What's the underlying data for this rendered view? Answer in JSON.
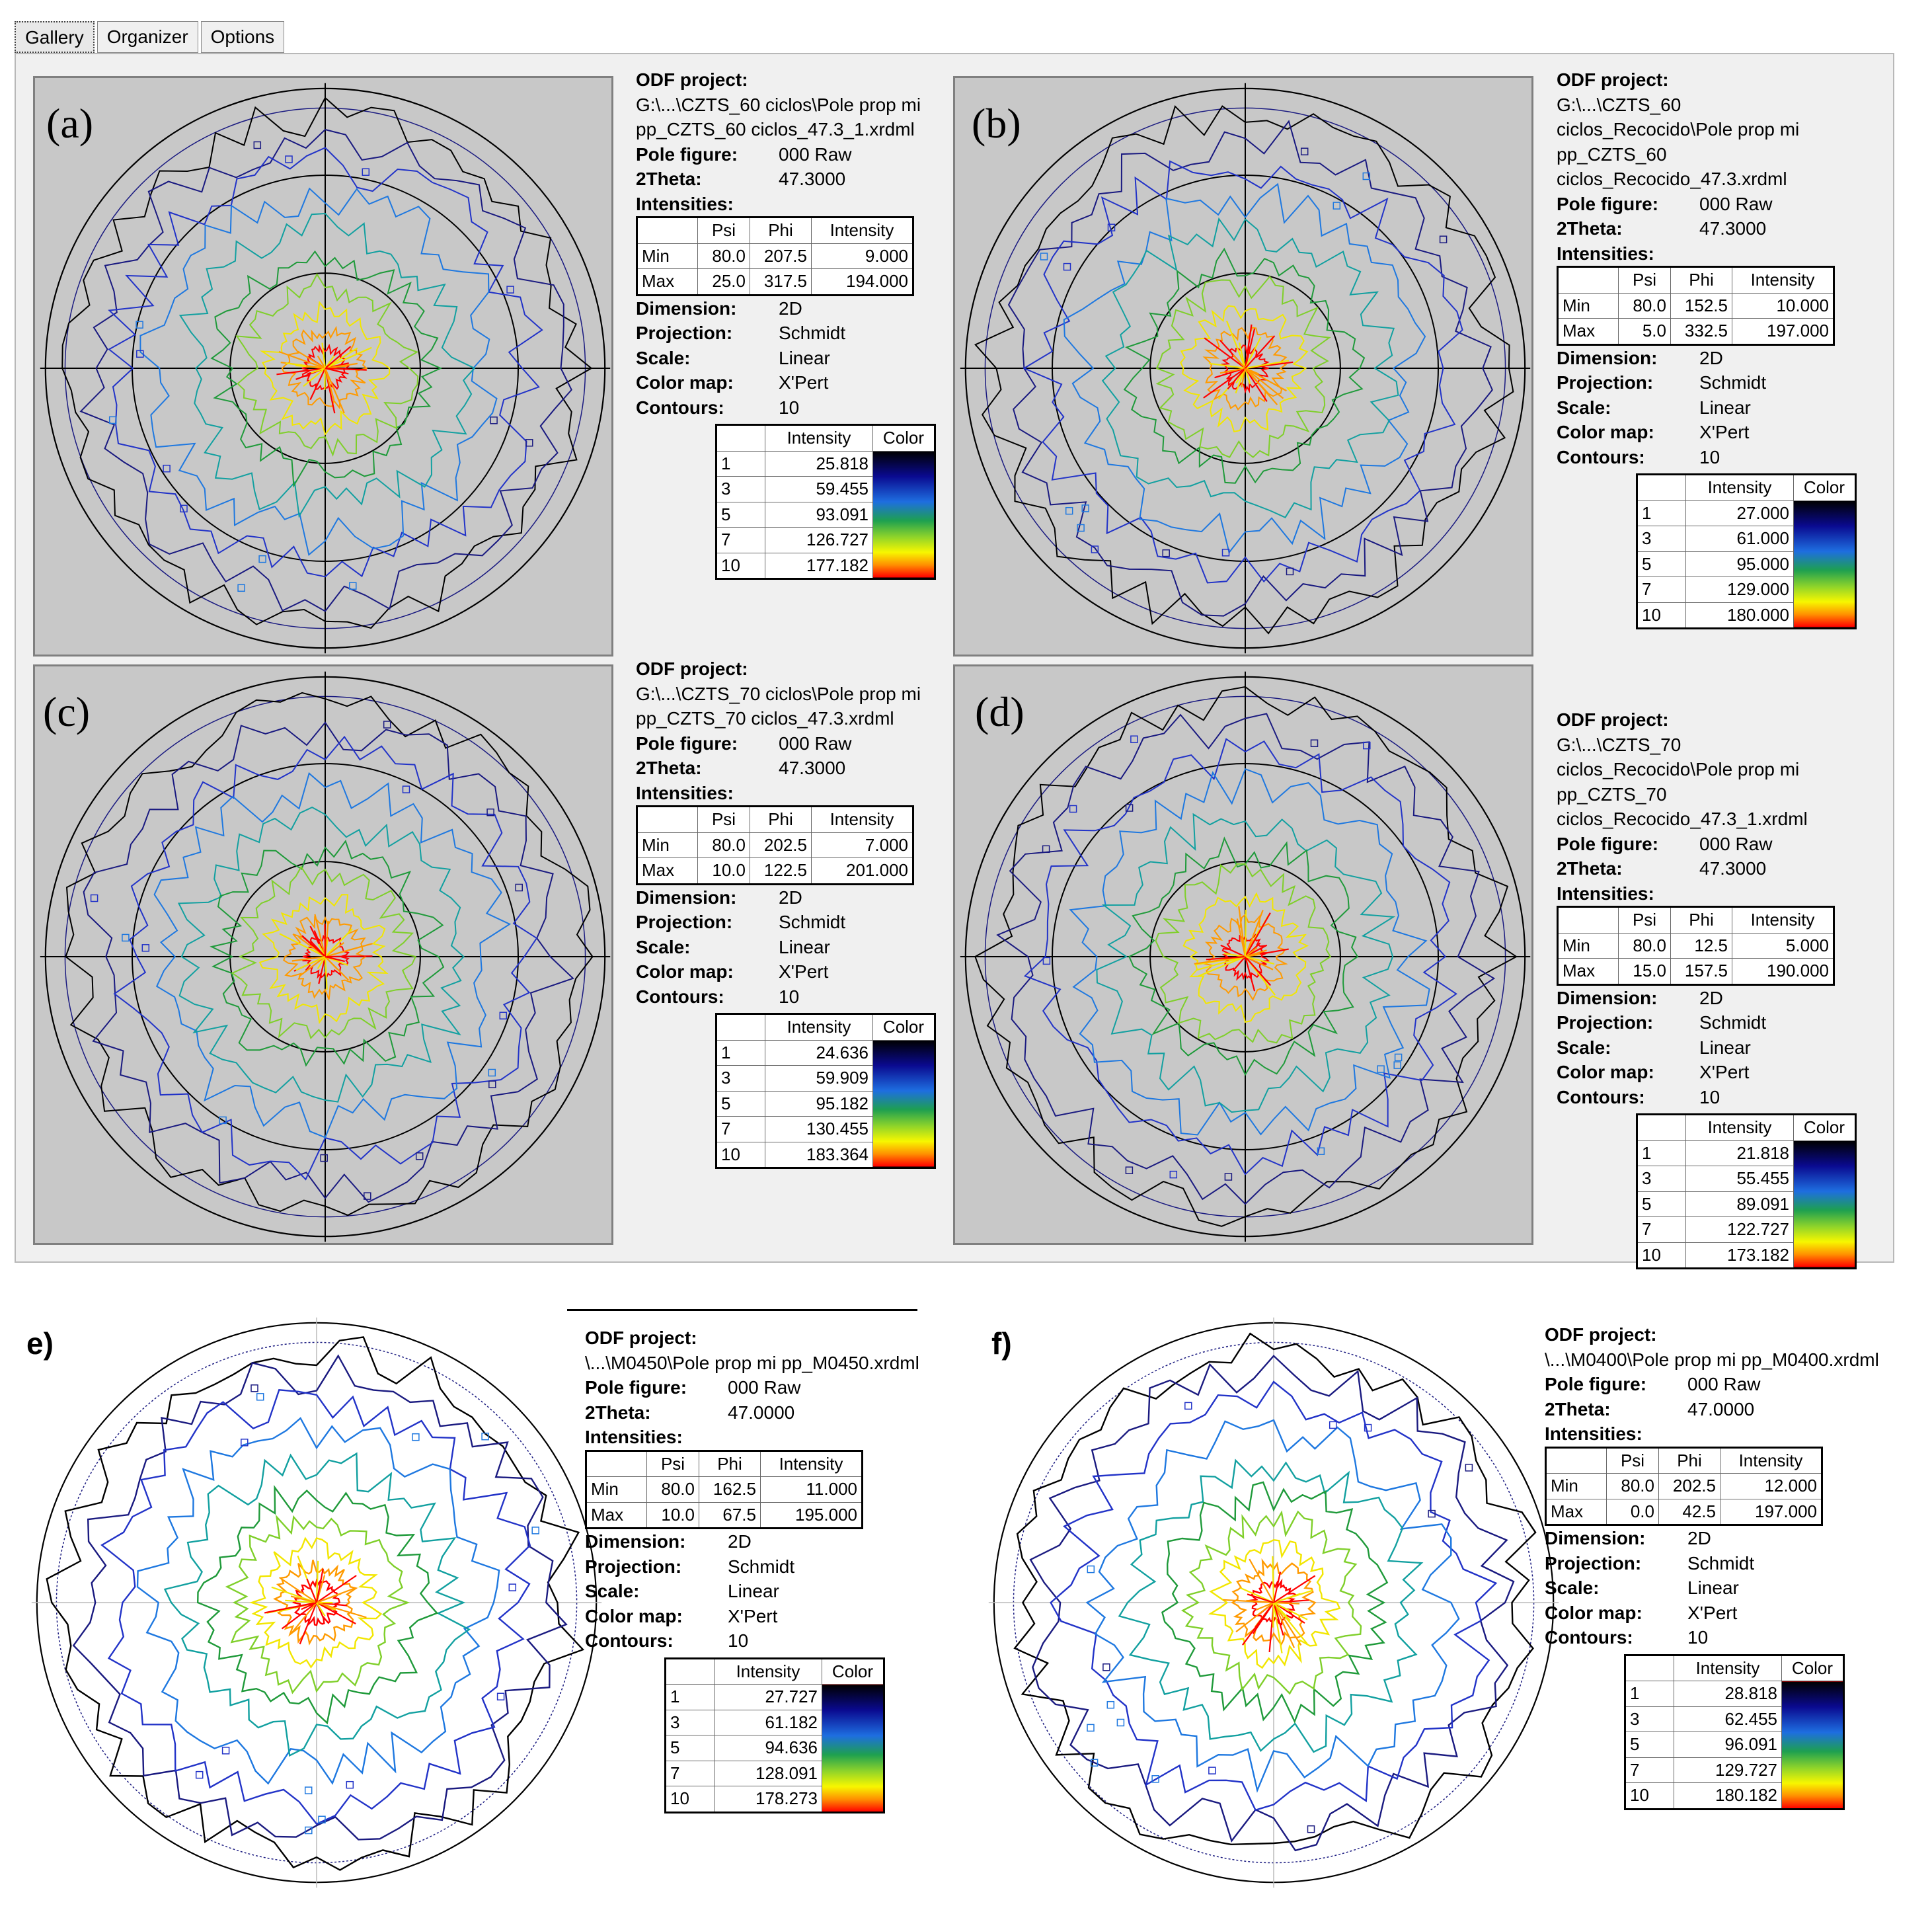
{
  "tabs": [
    "Gallery",
    "Organizer",
    "Options"
  ],
  "panels": [
    {
      "label": "(a)",
      "project_label": "ODF project:",
      "project_path": [
        "G:\\...\\CZTS_60 ciclos\\Pole prop mi",
        "pp_CZTS_60 ciclos_47.3_1.xrdml"
      ],
      "pole_figure_label": "Pole figure:",
      "pole_figure": "000 Raw",
      "two_theta_label": "2Theta:",
      "two_theta": "47.3000",
      "intensities_label": "Intensities:",
      "table_headers": [
        "",
        "Psi",
        "Phi",
        "Intensity"
      ],
      "min": [
        "Min",
        "80.0",
        "207.5",
        "9.000"
      ],
      "max": [
        "Max",
        "25.0",
        "317.5",
        "194.000"
      ],
      "dimension_label": "Dimension:",
      "dimension": "2D",
      "projection_label": "Projection:",
      "projection": "Schmidt",
      "scale_label": "Scale:",
      "scale": "Linear",
      "colormap_label": "Color map:",
      "colormap": "X'Pert",
      "contours_label": "Contours:",
      "contours": "10",
      "legend_headers": [
        "",
        "Intensity",
        "Color"
      ],
      "legend": [
        [
          "1",
          "25.818"
        ],
        [
          "3",
          "59.455"
        ],
        [
          "5",
          "93.091"
        ],
        [
          "7",
          "126.727"
        ],
        [
          "10",
          "177.182"
        ]
      ]
    },
    {
      "label": "(b)",
      "project_label": "ODF project:",
      "project_path": [
        "G:\\...\\CZTS_60",
        "ciclos_Recocido\\Pole prop mi",
        "pp_CZTS_60",
        "ciclos_Recocido_47.3.xrdml"
      ],
      "pole_figure_label": "Pole figure:",
      "pole_figure": "000 Raw",
      "two_theta_label": "2Theta:",
      "two_theta": "47.3000",
      "intensities_label": "Intensities:",
      "table_headers": [
        "",
        "Psi",
        "Phi",
        "Intensity"
      ],
      "min": [
        "Min",
        "80.0",
        "152.5",
        "10.000"
      ],
      "max": [
        "Max",
        "5.0",
        "332.5",
        "197.000"
      ],
      "dimension_label": "Dimension:",
      "dimension": "2D",
      "projection_label": "Projection:",
      "projection": "Schmidt",
      "scale_label": "Scale:",
      "scale": "Linear",
      "colormap_label": "Color map:",
      "colormap": "X'Pert",
      "contours_label": "Contours:",
      "contours": "10",
      "legend_headers": [
        "",
        "Intensity",
        "Color"
      ],
      "legend": [
        [
          "1",
          "27.000"
        ],
        [
          "3",
          "61.000"
        ],
        [
          "5",
          "95.000"
        ],
        [
          "7",
          "129.000"
        ],
        [
          "10",
          "180.000"
        ]
      ]
    },
    {
      "label": "(c)",
      "project_label": "ODF project:",
      "project_path": [
        "G:\\...\\CZTS_70 ciclos\\Pole prop mi",
        "pp_CZTS_70 ciclos_47.3.xrdml"
      ],
      "pole_figure_label": "Pole figure:",
      "pole_figure": "000 Raw",
      "two_theta_label": "2Theta:",
      "two_theta": "47.3000",
      "intensities_label": "Intensities:",
      "table_headers": [
        "",
        "Psi",
        "Phi",
        "Intensity"
      ],
      "min": [
        "Min",
        "80.0",
        "202.5",
        "7.000"
      ],
      "max": [
        "Max",
        "10.0",
        "122.5",
        "201.000"
      ],
      "dimension_label": "Dimension:",
      "dimension": "2D",
      "projection_label": "Projection:",
      "projection": "Schmidt",
      "scale_label": "Scale:",
      "scale": "Linear",
      "colormap_label": "Color map:",
      "colormap": "X'Pert",
      "contours_label": "Contours:",
      "contours": "10",
      "legend_headers": [
        "",
        "Intensity",
        "Color"
      ],
      "legend": [
        [
          "1",
          "24.636"
        ],
        [
          "3",
          "59.909"
        ],
        [
          "5",
          "95.182"
        ],
        [
          "7",
          "130.455"
        ],
        [
          "10",
          "183.364"
        ]
      ]
    },
    {
      "label": "(d)",
      "project_label": "ODF project:",
      "project_path": [
        "G:\\...\\CZTS_70",
        "ciclos_Recocido\\Pole prop mi",
        "pp_CZTS_70",
        "ciclos_Recocido_47.3_1.xrdml"
      ],
      "pole_figure_label": "Pole figure:",
      "pole_figure": "000 Raw",
      "two_theta_label": "2Theta:",
      "two_theta": "47.3000",
      "intensities_label": "Intensities:",
      "table_headers": [
        "",
        "Psi",
        "Phi",
        "Intensity"
      ],
      "min": [
        "Min",
        "80.0",
        "12.5",
        "5.000"
      ],
      "max": [
        "Max",
        "15.0",
        "157.5",
        "190.000"
      ],
      "dimension_label": "Dimension:",
      "dimension": "2D",
      "projection_label": "Projection:",
      "projection": "Schmidt",
      "scale_label": "Scale:",
      "scale": "Linear",
      "colormap_label": "Color map:",
      "colormap": "X'Pert",
      "contours_label": "Contours:",
      "contours": "10",
      "legend_headers": [
        "",
        "Intensity",
        "Color"
      ],
      "legend": [
        [
          "1",
          "21.818"
        ],
        [
          "3",
          "55.455"
        ],
        [
          "5",
          "89.091"
        ],
        [
          "7",
          "122.727"
        ],
        [
          "10",
          "173.182"
        ]
      ]
    },
    {
      "label": "e)",
      "project_label": "ODF project:",
      "project_path": [
        "\\...\\M0450\\Pole prop mi pp_M0450.xrdml"
      ],
      "pole_figure_label": "Pole figure:",
      "pole_figure": "000 Raw",
      "two_theta_label": "2Theta:",
      "two_theta": "47.0000",
      "intensities_label": "Intensities:",
      "table_headers": [
        "",
        "Psi",
        "Phi",
        "Intensity"
      ],
      "min": [
        "Min",
        "80.0",
        "162.5",
        "11.000"
      ],
      "max": [
        "Max",
        "10.0",
        "67.5",
        "195.000"
      ],
      "dimension_label": "Dimension:",
      "dimension": "2D",
      "projection_label": "Projection:",
      "projection": "Schmidt",
      "scale_label": "Scale:",
      "scale": "Linear",
      "colormap_label": "Color map:",
      "colormap": "X'Pert",
      "contours_label": "Contours:",
      "contours": "10",
      "legend_headers": [
        "",
        "Intensity",
        "Color"
      ],
      "legend": [
        [
          "1",
          "27.727"
        ],
        [
          "3",
          "61.182"
        ],
        [
          "5",
          "94.636"
        ],
        [
          "7",
          "128.091"
        ],
        [
          "10",
          "178.273"
        ]
      ]
    },
    {
      "label": "f)",
      "project_label": "ODF project:",
      "project_path": [
        "\\...\\M0400\\Pole prop mi pp_M0400.xrdml"
      ],
      "pole_figure_label": "Pole figure:",
      "pole_figure": "000 Raw",
      "two_theta_label": "2Theta:",
      "two_theta": "47.0000",
      "intensities_label": "Intensities:",
      "table_headers": [
        "",
        "Psi",
        "Phi",
        "Intensity"
      ],
      "min": [
        "Min",
        "80.0",
        "202.5",
        "12.000"
      ],
      "max": [
        "Max",
        "0.0",
        "42.5",
        "197.000"
      ],
      "dimension_label": "Dimension:",
      "dimension": "2D",
      "projection_label": "Projection:",
      "projection": "Schmidt",
      "scale_label": "Scale:",
      "scale": "Linear",
      "colormap_label": "Color map:",
      "colormap": "X'Pert",
      "contours_label": "Contours:",
      "contours": "10",
      "legend_headers": [
        "",
        "Intensity",
        "Color"
      ],
      "legend": [
        [
          "1",
          "28.818"
        ],
        [
          "3",
          "62.455"
        ],
        [
          "5",
          "96.091"
        ],
        [
          "7",
          "129.727"
        ],
        [
          "10",
          "180.182"
        ]
      ]
    }
  ],
  "contour_colors": [
    "#000000",
    "#1a1a80",
    "#2233c8",
    "#1e78e0",
    "#12a0a0",
    "#1f9a3a",
    "#7fcf2a",
    "#f2e600",
    "#ff9a00",
    "#ff0000"
  ],
  "icons": {
    "axis_marker": "person-marker-icon",
    "cbar": "color-gradient-icon"
  }
}
